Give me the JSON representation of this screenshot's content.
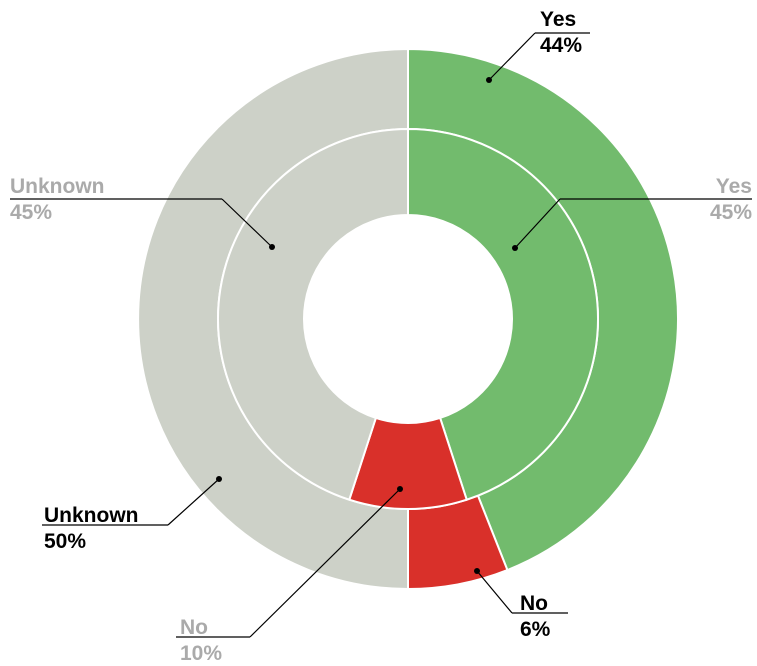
{
  "chart_data": {
    "type": "pie",
    "style": "nested donut",
    "colors": {
      "Yes": "#72bb6d",
      "No": "#d9302a",
      "Unknown": "#cdd1c8"
    },
    "series": [
      {
        "ring": "outer",
        "slices": [
          {
            "label": "Yes",
            "value": 44,
            "value_text": "44%"
          },
          {
            "label": "No",
            "value": 6,
            "value_text": "6%"
          },
          {
            "label": "Unknown",
            "value": 50,
            "value_text": "50%"
          }
        ]
      },
      {
        "ring": "inner",
        "slices": [
          {
            "label": "Yes",
            "value": 45,
            "value_text": "45%"
          },
          {
            "label": "No",
            "value": 10,
            "value_text": "10%"
          },
          {
            "label": "Unknown",
            "value": 45,
            "value_text": "45%"
          }
        ]
      }
    ]
  }
}
